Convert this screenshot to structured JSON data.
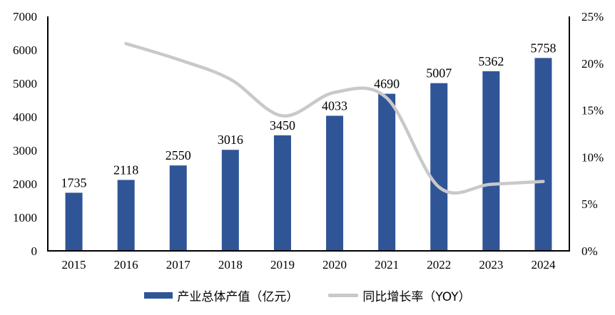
{
  "chart_data": {
    "type": "bar",
    "subtype": "combo-bar-line-dual-axis",
    "title": "",
    "categories": [
      "2015",
      "2016",
      "2017",
      "2018",
      "2019",
      "2020",
      "2021",
      "2022",
      "2023",
      "2024"
    ],
    "series": [
      {
        "name": "产业总体产值（亿元）",
        "type": "bar",
        "axis": "left",
        "color": "#2F5597",
        "values": [
          1735,
          2118,
          2550,
          3016,
          3450,
          4033,
          4690,
          5007,
          5362,
          5758
        ]
      },
      {
        "name": "同比增长率（YOY）",
        "type": "line",
        "axis": "right",
        "color": "#C9C9C9",
        "smooth": true,
        "unit": "%",
        "values": [
          null,
          22.1,
          20.4,
          18.3,
          14.4,
          16.9,
          16.3,
          6.8,
          7.1,
          7.4
        ]
      }
    ],
    "data_labels": [
      "1735",
      "2118",
      "2550",
      "3016",
      "3450",
      "4033",
      "4690",
      "5007",
      "5362",
      "5758"
    ],
    "left_axis": {
      "min": 0,
      "max": 7000,
      "step": 1000,
      "tick_labels": [
        "0",
        "1000",
        "2000",
        "3000",
        "4000",
        "5000",
        "6000",
        "7000"
      ]
    },
    "right_axis": {
      "min": 0,
      "max": 25,
      "step": 5,
      "tick_labels": [
        "0%",
        "5%",
        "10%",
        "15%",
        "20%",
        "25%"
      ]
    },
    "grid": false,
    "legend_position": "bottom",
    "axis_color": "#000000",
    "text_color": "#000000",
    "background_color": "#FFFFFF"
  },
  "legend": {
    "items": [
      {
        "label": "产业总体产值（亿元）",
        "swatch": "bar-swatch",
        "color": "#2F5597"
      },
      {
        "label": "同比增长率（YOY）",
        "swatch": "line-swatch",
        "color": "#C9C9C9"
      }
    ]
  }
}
